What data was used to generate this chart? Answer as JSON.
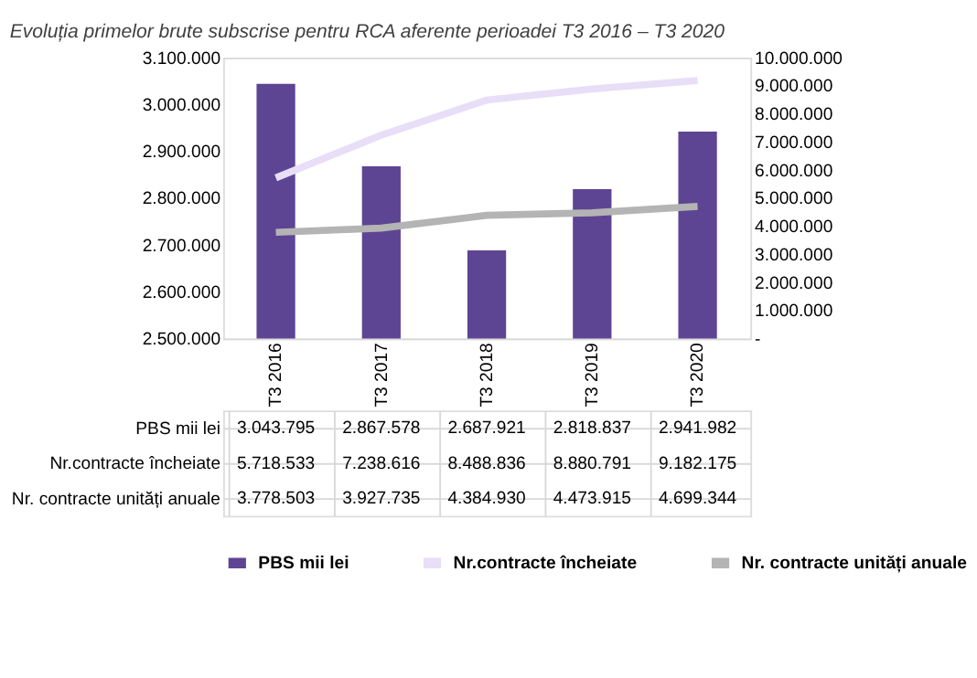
{
  "chart_data": {
    "type": "bar",
    "title": "Evoluția primelor brute subscrise pentru RCA aferente perioadei T3 2016 – T3 2020",
    "categories": [
      "T3 2016",
      "T3 2017",
      "T3 2018",
      "T3 2019",
      "T3 2020"
    ],
    "series": [
      {
        "name": "PBS mii lei",
        "color": "#5e4593",
        "values": [
          3043795,
          2867578,
          2687921,
          2818837,
          2941982
        ],
        "value_labels": [
          "3.043.795",
          "2.867.578",
          "2.687.921",
          "2.818.837",
          "2.941.982"
        ]
      },
      {
        "name": "Nr.contracte încheiate",
        "color": "#e8def7",
        "type": "line",
        "axis": "y2",
        "values": [
          5718533,
          7238616,
          8488836,
          8880791,
          9182175
        ],
        "value_labels": [
          "5.718.533",
          "7.238.616",
          "8.488.836",
          "8.880.791",
          "9.182.175"
        ]
      },
      {
        "name": "Nr. contracte unități anuale",
        "color": "#b4b4b4",
        "type": "line",
        "axis": "y2",
        "values": [
          3778503,
          3927735,
          4384930,
          4473915,
          4699344
        ],
        "value_labels": [
          "3.778.503",
          "3.927.735",
          "4.384.930",
          "4.473.915",
          "4.699.344"
        ]
      }
    ],
    "ylim": [
      2500000,
      3100000
    ],
    "yticks": [
      {
        "value": 2500000,
        "label": "2.500.000"
      },
      {
        "value": 2600000,
        "label": "2.600.000"
      },
      {
        "value": 2700000,
        "label": "2.700.000"
      },
      {
        "value": 2800000,
        "label": "2.800.000"
      },
      {
        "value": 2900000,
        "label": "2.900.000"
      },
      {
        "value": 3000000,
        "label": "3.000.000"
      },
      {
        "value": 3100000,
        "label": "3.100.000"
      }
    ],
    "y2lim": [
      0,
      10000000
    ],
    "y2ticks": [
      {
        "value": 0,
        "label": "-"
      },
      {
        "value": 1000000,
        "label": "1.000.000"
      },
      {
        "value": 2000000,
        "label": "2.000.000"
      },
      {
        "value": 3000000,
        "label": "3.000.000"
      },
      {
        "value": 4000000,
        "label": "4.000.000"
      },
      {
        "value": 5000000,
        "label": "5.000.000"
      },
      {
        "value": 6000000,
        "label": "6.000.000"
      },
      {
        "value": 7000000,
        "label": "7.000.000"
      },
      {
        "value": 8000000,
        "label": "8.000.000"
      },
      {
        "value": 9000000,
        "label": "9.000.000"
      },
      {
        "value": 10000000,
        "label": "10.000.000"
      }
    ],
    "grid": false,
    "legend": "bottom",
    "marker": "none",
    "line_style": "solid"
  }
}
